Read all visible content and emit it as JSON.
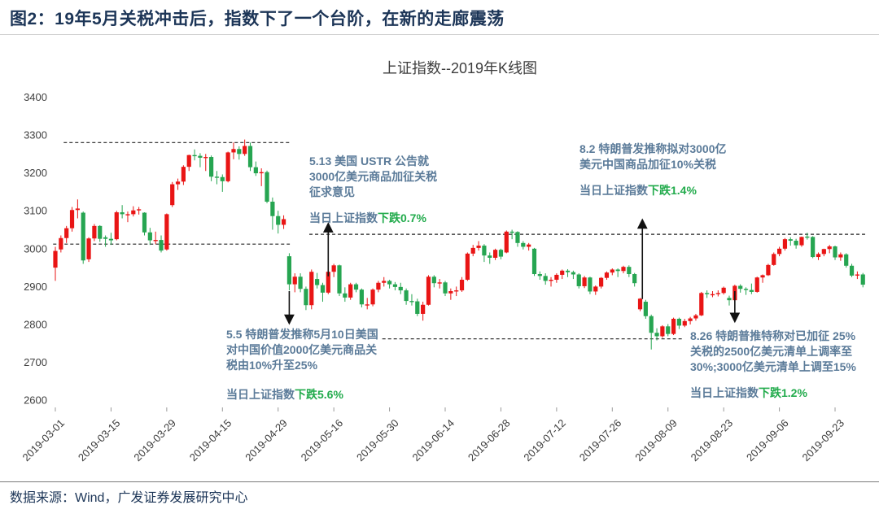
{
  "page": {
    "title": "图2：19年5月关税冲击后，指数下了一个台阶，在新的走廊震荡",
    "source": "数据来源：Wind，广发证券发展研究中心"
  },
  "colors": {
    "title_navy": "#1c3557",
    "annotation_slate": "#5b7b99",
    "drop_green": "#22ab4c",
    "candle_up_red": "#e91515",
    "candle_down_green": "#26a551"
  },
  "chart_data": {
    "type": "candlestick",
    "title": "上证指数--2019年K线图",
    "ylim": [
      2600,
      3400
    ],
    "grid": false,
    "y_ticks": [
      3400,
      3300,
      3200,
      3100,
      3000,
      2900,
      2800,
      2700,
      2600
    ],
    "x_tick_indices": [
      0,
      10,
      20,
      30,
      40,
      50,
      60,
      70,
      80,
      90,
      100,
      110,
      120,
      130,
      140
    ],
    "x_tick_labels": [
      "2019-03-01",
      "2019-03-15",
      "2019-03-29",
      "2019-04-15",
      "2019-04-29",
      "2019-05-16",
      "2019-05-30",
      "2019-06-14",
      "2019-06-28",
      "2019-07-12",
      "2019-07-26",
      "2019-08-09",
      "2019-08-23",
      "2019-09-06",
      "2019-09-23"
    ],
    "up_color": "#e91515",
    "down_color": "#26a551",
    "dates": [
      "03-01",
      "03-04",
      "03-05",
      "03-06",
      "03-07",
      "03-08",
      "03-11",
      "03-12",
      "03-13",
      "03-14",
      "03-15",
      "03-18",
      "03-19",
      "03-20",
      "03-21",
      "03-22",
      "03-25",
      "03-26",
      "03-27",
      "03-28",
      "03-29",
      "04-01",
      "04-02",
      "04-03",
      "04-04",
      "04-08",
      "04-09",
      "04-10",
      "04-11",
      "04-12",
      "04-15",
      "04-16",
      "04-17",
      "04-18",
      "04-19",
      "04-22",
      "04-23",
      "04-24",
      "04-25",
      "04-26",
      "04-29",
      "04-30",
      "05-06",
      "05-07",
      "05-08",
      "05-09",
      "05-10",
      "05-13",
      "05-14",
      "05-15",
      "05-16",
      "05-17",
      "05-20",
      "05-21",
      "05-22",
      "05-23",
      "05-24",
      "05-27",
      "05-28",
      "05-29",
      "05-30",
      "05-31",
      "06-03",
      "06-04",
      "06-05",
      "06-06",
      "06-10",
      "06-11",
      "06-12",
      "06-13",
      "06-14",
      "06-17",
      "06-18",
      "06-19",
      "06-20",
      "06-21",
      "06-24",
      "06-25",
      "06-26",
      "06-27",
      "06-28",
      "07-01",
      "07-02",
      "07-03",
      "07-04",
      "07-05",
      "07-08",
      "07-09",
      "07-10",
      "07-11",
      "07-12",
      "07-15",
      "07-16",
      "07-17",
      "07-18",
      "07-19",
      "07-22",
      "07-23",
      "07-24",
      "07-25",
      "07-26",
      "07-29",
      "07-30",
      "07-31",
      "08-01",
      "08-02",
      "08-05",
      "08-06",
      "08-07",
      "08-08",
      "08-09",
      "08-12",
      "08-13",
      "08-14",
      "08-15",
      "08-16",
      "08-19",
      "08-20",
      "08-21",
      "08-22",
      "08-23",
      "08-26",
      "08-27",
      "08-28",
      "08-29",
      "08-30",
      "09-02",
      "09-03",
      "09-04",
      "09-05",
      "09-06",
      "09-09",
      "09-10",
      "09-11",
      "09-12",
      "09-16",
      "09-17",
      "09-18",
      "09-19",
      "09-20",
      "09-23",
      "09-24",
      "09-25",
      "09-26",
      "09-27",
      "09-30"
    ],
    "candles": [
      [
        2950,
        3005,
        2915,
        2994
      ],
      [
        2998,
        3035,
        2990,
        3028
      ],
      [
        3028,
        3060,
        3015,
        3054
      ],
      [
        3054,
        3110,
        3045,
        3102
      ],
      [
        3102,
        3130,
        3080,
        3106
      ],
      [
        3095,
        3098,
        2960,
        2969
      ],
      [
        2972,
        3030,
        2965,
        3027
      ],
      [
        3027,
        3065,
        3020,
        3060
      ],
      [
        3060,
        3062,
        3018,
        3026
      ],
      [
        3030,
        3035,
        3005,
        3026
      ],
      [
        3026,
        3042,
        3010,
        3022
      ],
      [
        3025,
        3100,
        3022,
        3096
      ],
      [
        3096,
        3115,
        3080,
        3091
      ],
      [
        3088,
        3098,
        3070,
        3091
      ],
      [
        3091,
        3112,
        3085,
        3101
      ],
      [
        3101,
        3110,
        3090,
        3104
      ],
      [
        3095,
        3096,
        3035,
        3043
      ],
      [
        3043,
        3055,
        3010,
        3022
      ],
      [
        3022,
        3045,
        3012,
        3023
      ],
      [
        3023,
        3035,
        2990,
        2995
      ],
      [
        2998,
        3093,
        2995,
        3091
      ],
      [
        3115,
        3176,
        3110,
        3170
      ],
      [
        3170,
        3185,
        3155,
        3177
      ],
      [
        3177,
        3220,
        3168,
        3216
      ],
      [
        3216,
        3248,
        3205,
        3247
      ],
      [
        3247,
        3262,
        3233,
        3245
      ],
      [
        3245,
        3252,
        3215,
        3240
      ],
      [
        3240,
        3250,
        3205,
        3242
      ],
      [
        3242,
        3246,
        3178,
        3190
      ],
      [
        3190,
        3205,
        3170,
        3189
      ],
      [
        3189,
        3196,
        3150,
        3178
      ],
      [
        3178,
        3256,
        3175,
        3254
      ],
      [
        3254,
        3280,
        3236,
        3263
      ],
      [
        3263,
        3270,
        3235,
        3250
      ],
      [
        3250,
        3288,
        3245,
        3271
      ],
      [
        3271,
        3280,
        3205,
        3215
      ],
      [
        3215,
        3230,
        3192,
        3199
      ],
      [
        3199,
        3212,
        3165,
        3202
      ],
      [
        3202,
        3206,
        3120,
        3124
      ],
      [
        3124,
        3135,
        3050,
        3086
      ],
      [
        3086,
        3100,
        3040,
        3063
      ],
      [
        3063,
        3088,
        3052,
        3078
      ],
      [
        2980,
        2988,
        2890,
        2906
      ],
      [
        2906,
        2935,
        2885,
        2926
      ],
      [
        2926,
        2935,
        2885,
        2894
      ],
      [
        2894,
        2900,
        2838,
        2851
      ],
      [
        2851,
        2945,
        2840,
        2939
      ],
      [
        2920,
        2936,
        2895,
        2904
      ],
      [
        2904,
        2910,
        2860,
        2884
      ],
      [
        2884,
        2940,
        2880,
        2939
      ],
      [
        2939,
        2960,
        2925,
        2956
      ],
      [
        2956,
        2958,
        2875,
        2882
      ],
      [
        2882,
        2898,
        2860,
        2871
      ],
      [
        2871,
        2910,
        2865,
        2906
      ],
      [
        2906,
        2910,
        2885,
        2892
      ],
      [
        2892,
        2895,
        2845,
        2853
      ],
      [
        2850,
        2870,
        2840,
        2853
      ],
      [
        2853,
        2895,
        2848,
        2892
      ],
      [
        2892,
        2915,
        2885,
        2910
      ],
      [
        2910,
        2925,
        2900,
        2915
      ],
      [
        2915,
        2918,
        2895,
        2906
      ],
      [
        2906,
        2912,
        2890,
        2899
      ],
      [
        2899,
        2910,
        2880,
        2890
      ],
      [
        2890,
        2895,
        2852,
        2862
      ],
      [
        2862,
        2880,
        2850,
        2861
      ],
      [
        2861,
        2868,
        2822,
        2828
      ],
      [
        2828,
        2860,
        2810,
        2852
      ],
      [
        2852,
        2930,
        2850,
        2926
      ],
      [
        2926,
        2930,
        2898,
        2909
      ],
      [
        2909,
        2920,
        2895,
        2911
      ],
      [
        2911,
        2915,
        2875,
        2882
      ],
      [
        2882,
        2895,
        2865,
        2888
      ],
      [
        2888,
        2900,
        2875,
        2890
      ],
      [
        2890,
        2925,
        2886,
        2918
      ],
      [
        2918,
        2990,
        2915,
        2987
      ],
      [
        2987,
        3010,
        2980,
        3002
      ],
      [
        3002,
        3020,
        2995,
        3008
      ],
      [
        3008,
        3012,
        2965,
        2982
      ],
      [
        2982,
        2990,
        2960,
        2976
      ],
      [
        2976,
        3000,
        2970,
        2997
      ],
      [
        2997,
        3000,
        2972,
        2979
      ],
      [
        2990,
        3048,
        2988,
        3045
      ],
      [
        3045,
        3050,
        3025,
        3044
      ],
      [
        3044,
        3046,
        3005,
        3015
      ],
      [
        3015,
        3020,
        2998,
        3005
      ],
      [
        3005,
        3015,
        2995,
        3011
      ],
      [
        3000,
        3002,
        2928,
        2933
      ],
      [
        2933,
        2940,
        2918,
        2928
      ],
      [
        2928,
        2935,
        2905,
        2915
      ],
      [
        2915,
        2925,
        2900,
        2918
      ],
      [
        2918,
        2935,
        2910,
        2931
      ],
      [
        2931,
        2945,
        2920,
        2942
      ],
      [
        2942,
        2946,
        2925,
        2938
      ],
      [
        2938,
        2942,
        2920,
        2932
      ],
      [
        2932,
        2935,
        2895,
        2901
      ],
      [
        2901,
        2928,
        2896,
        2924
      ],
      [
        2924,
        2926,
        2880,
        2887
      ],
      [
        2887,
        2903,
        2878,
        2900
      ],
      [
        2900,
        2925,
        2895,
        2923
      ],
      [
        2923,
        2940,
        2918,
        2937
      ],
      [
        2937,
        2948,
        2930,
        2945
      ],
      [
        2945,
        2948,
        2925,
        2941
      ],
      [
        2941,
        2955,
        2935,
        2952
      ],
      [
        2952,
        2956,
        2925,
        2933
      ],
      [
        2933,
        2936,
        2900,
        2909
      ],
      [
        2840,
        2870,
        2835,
        2868
      ],
      [
        2860,
        2865,
        2815,
        2822
      ],
      [
        2822,
        2826,
        2734,
        2778
      ],
      [
        2778,
        2790,
        2758,
        2769
      ],
      [
        2769,
        2798,
        2765,
        2795
      ],
      [
        2795,
        2801,
        2769,
        2775
      ],
      [
        2775,
        2818,
        2772,
        2815
      ],
      [
        2815,
        2818,
        2788,
        2797
      ],
      [
        2797,
        2815,
        2793,
        2809
      ],
      [
        2809,
        2820,
        2800,
        2816
      ],
      [
        2816,
        2828,
        2810,
        2824
      ],
      [
        2824,
        2886,
        2822,
        2883
      ],
      [
        2883,
        2890,
        2870,
        2880
      ],
      [
        2878,
        2888,
        2872,
        2880
      ],
      [
        2880,
        2890,
        2874,
        2883
      ],
      [
        2883,
        2900,
        2879,
        2897
      ],
      [
        2870,
        2876,
        2850,
        2864
      ],
      [
        2864,
        2905,
        2860,
        2902
      ],
      [
        2902,
        2906,
        2884,
        2894
      ],
      [
        2894,
        2898,
        2878,
        2891
      ],
      [
        2891,
        2908,
        2880,
        2886
      ],
      [
        2886,
        2926,
        2884,
        2924
      ],
      [
        2924,
        2932,
        2910,
        2930
      ],
      [
        2930,
        2960,
        2928,
        2957
      ],
      [
        2957,
        2990,
        2955,
        2986
      ],
      [
        2986,
        3005,
        2980,
        3000
      ],
      [
        3000,
        3028,
        2995,
        3025
      ],
      [
        3025,
        3030,
        3008,
        3021
      ],
      [
        3021,
        3026,
        3000,
        3009
      ],
      [
        3009,
        3032,
        3005,
        3031
      ],
      [
        3032,
        3042,
        3024,
        3031
      ],
      [
        3031,
        3033,
        2975,
        2978
      ],
      [
        2978,
        2990,
        2970,
        2986
      ],
      [
        2986,
        3000,
        2980,
        2999
      ],
      [
        2999,
        3010,
        2988,
        3006
      ],
      [
        3006,
        3008,
        2970,
        2977
      ],
      [
        2977,
        2990,
        2968,
        2985
      ],
      [
        2985,
        2988,
        2950,
        2955
      ],
      [
        2955,
        2960,
        2925,
        2929
      ],
      [
        2929,
        2940,
        2920,
        2932
      ],
      [
        2932,
        2936,
        2898,
        2905
      ]
    ],
    "dashed_lines": [
      {
        "value": 3280,
        "from": 1.5,
        "to": 42.1
      },
      {
        "value": 3012,
        "from": -0.4,
        "to": 42.1
      },
      {
        "value": 3038,
        "from": 45.6,
        "to": 145.4
      },
      {
        "value": 2762,
        "from": 58.7,
        "to": 112.5
      }
    ],
    "arrows": [
      {
        "index": 49,
        "from": 2927,
        "to": 3065,
        "direction": "up"
      },
      {
        "index": 42,
        "from": 2888,
        "to": 2804,
        "direction": "down"
      },
      {
        "index": 105.4,
        "from": 2867,
        "to": 3075,
        "direction": "up"
      },
      {
        "index": 122,
        "from": 2888,
        "to": 2809,
        "direction": "down"
      }
    ],
    "annotations": [
      {
        "event_date": "5.13",
        "lines": [
          "5.13 美国 USTR 公告就",
          "3000亿美元商品加征关税",
          "征求意见"
        ],
        "day": "当日上证指数",
        "drop": "下跌0.7%"
      },
      {
        "event_date": "8.2",
        "lines": [
          "8.2 特朗普发推称拟对3000亿",
          "美元中国商品加征10%关税"
        ],
        "day": "当日上证指数",
        "drop": "下跌1.4%"
      },
      {
        "event_date": "5.5",
        "lines": [
          "5.5 特朗普发推称5月10日美国",
          "对中国价值2000亿美元商品关",
          "税由10%升至25%"
        ],
        "day": "当日上证指数",
        "drop": "下跌5.6%"
      },
      {
        "event_date": "8.26",
        "lines": [
          "8.26 特朗普推特称对已加征 25%",
          "关税的2500亿美元清单上调率至",
          "30%;3000亿美元清单上调至15%"
        ],
        "day": "当日上证指数",
        "drop": "下跌1.2%"
      }
    ]
  }
}
